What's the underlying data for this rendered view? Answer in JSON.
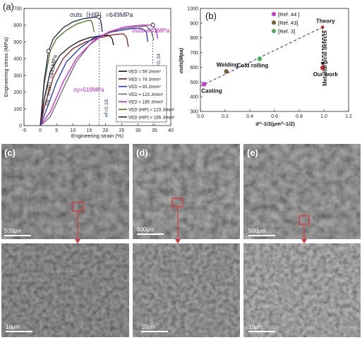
{
  "chart_data": [
    {
      "panel": "(a)",
      "type": "line",
      "xlabel": "Engineering strain (%)",
      "ylabel": "Engineering stress (MPa)",
      "xlim": [
        -5,
        40
      ],
      "ylim": [
        0,
        700
      ],
      "xticks": [
        -5,
        0,
        5,
        10,
        15,
        20,
        25,
        30,
        35,
        40
      ],
      "yticks": [
        0,
        100,
        200,
        300,
        400,
        500,
        600,
        700
      ],
      "series": [
        {
          "name": "VED = 59 J/mm³",
          "color": "#111111",
          "x": [
            0,
            1.2,
            3,
            6,
            9,
            12,
            15,
            19,
            21,
            22,
            22.5
          ],
          "y": [
            0,
            160,
            320,
            420,
            470,
            505,
            525,
            538,
            540,
            520,
            480
          ]
        },
        {
          "name": "VED = 74 J/mm³",
          "color": "#8a1a1a",
          "x": [
            0,
            1.5,
            4,
            7,
            10,
            14,
            18,
            23,
            25.5,
            26.5,
            27
          ],
          "y": [
            0,
            130,
            290,
            400,
            460,
            500,
            525,
            545,
            548,
            525,
            470
          ]
        },
        {
          "name": "VED = 93 J/mm³",
          "color": "#2030c0",
          "x": [
            0,
            2,
            5,
            8,
            12,
            16,
            22,
            28,
            31,
            32.5,
            33
          ],
          "y": [
            0,
            100,
            260,
            380,
            460,
            520,
            560,
            580,
            582,
            560,
            500
          ]
        },
        {
          "name": "VED = 123 J/mm³",
          "color": "#6a6a6a",
          "x": [
            0,
            3,
            7,
            11,
            15,
            19,
            24,
            29,
            32.5,
            34,
            34.8
          ],
          "y": [
            0,
            50,
            220,
            380,
            480,
            540,
            575,
            590,
            595,
            565,
            510
          ]
        },
        {
          "name": "VED = 185 J/mm³",
          "color": "#d020d0",
          "x": [
            0,
            3,
            7,
            11,
            16,
            21,
            26,
            31,
            34,
            35.5,
            36
          ],
          "y": [
            0,
            80,
            260,
            400,
            500,
            560,
            590,
            600,
            601,
            575,
            520
          ]
        },
        {
          "name": "VED (HIP) = 123 J/mm³",
          "color": "#557020",
          "x": [
            0,
            1.2,
            3,
            5,
            8,
            11,
            14,
            15.5,
            16,
            16.5
          ],
          "y": [
            0,
            250,
            445,
            520,
            570,
            605,
            625,
            630,
            610,
            560
          ]
        },
        {
          "name": "VED (HIP) = 185 J/mm³",
          "color": "#1a2a50",
          "x": [
            0,
            1.2,
            2.5,
            4,
            7,
            10,
            13,
            16,
            18,
            18.6,
            19
          ],
          "y": [
            0,
            270,
            445,
            520,
            585,
            620,
            638,
            647,
            649,
            620,
            560
          ]
        }
      ],
      "markers": [
        {
          "x": 2.5,
          "y": 445
        },
        {
          "x": 18,
          "y": 649
        },
        {
          "x": 34.5,
          "y": 601
        }
      ],
      "annotations": {
        "uts_hip": "σuts（HIP）=649MPa",
        "uts": "σuts=601MPa",
        "ys_hip": "σy（HIP）=445MPa",
        "ys": "σy=519MPa",
        "ef_hip": "ef=0.18",
        "ef": "ef=0.34"
      },
      "ref_lines": [
        18,
        34.5
      ]
    },
    {
      "panel": "(b)",
      "type": "scatter",
      "xlabel": "d^-1/2(μm^-1/2)",
      "ylabel": "σuts(Mpa)",
      "xlim": [
        0.0,
        1.2
      ],
      "ylim": [
        300,
        1000
      ],
      "xticks": [
        0.0,
        0.2,
        0.4,
        0.6,
        0.8,
        1.0,
        1.2
      ],
      "yticks": [
        300,
        400,
        500,
        600,
        700,
        800,
        900,
        1000
      ],
      "points": [
        {
          "label": "Casting",
          "x": 0.03,
          "y": 485,
          "color": "#d030d0"
        },
        {
          "label": "Welding",
          "x": 0.21,
          "y": 572,
          "color": "#7a5a2a"
        },
        {
          "label": "Cold rolling",
          "x": 0.48,
          "y": 658,
          "color": "#4caf50"
        },
        {
          "label": "Our work",
          "x": 0.99,
          "y": 597,
          "color": "#cc2222"
        },
        {
          "label": "Theory",
          "x": 0.99,
          "y": 873,
          "color": "#cc2222"
        }
      ],
      "legend": [
        "[Ref. 44 ]",
        "[Ref. 43]",
        "[Ref. 3]"
      ],
      "legend_colors": [
        "#d030d0",
        "#7a5a2a",
        "#4caf50"
      ],
      "trend": {
        "x": [
          0.0,
          0.99
        ],
        "y": [
          472,
          873
        ]
      },
      "vertical_label": "Metallurgical defects"
    }
  ],
  "panels": {
    "a_label": "(a)",
    "b_label": "(b)",
    "c_label": "(c)",
    "d_label": "(d)",
    "e_label": "(e)",
    "scale_top": "500μm",
    "scale_bottom": "10μm"
  }
}
